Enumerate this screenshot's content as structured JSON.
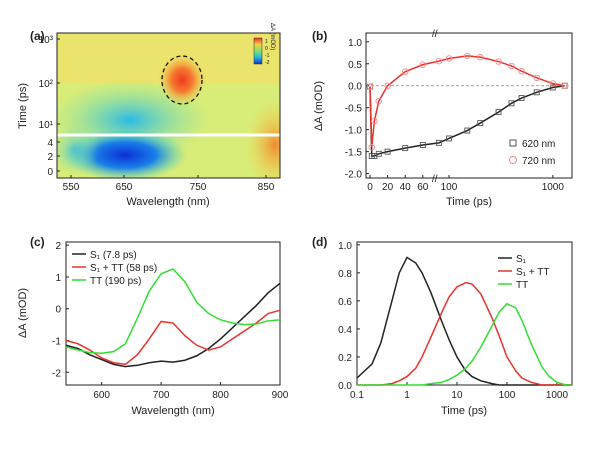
{
  "colors": {
    "black": "#222222",
    "red": "#e8322b",
    "green": "#33dd33",
    "red_marker": "#f28b8b",
    "black_marker": "#555555"
  },
  "chart_data": [
    {
      "panel": "(a)",
      "type": "heatmap",
      "xlabel": "Wavelength (nm)",
      "ylabel": "Time (ps)",
      "colorbar_label": "ΔA (mOD)",
      "colorbar_ticks": [
        "1",
        "0",
        "-1",
        "-2"
      ],
      "x_ticks": [
        "550",
        "650",
        "750",
        "850"
      ],
      "xlim": [
        530,
        900
      ],
      "y_ticks_log": [
        "10³",
        "10²",
        "10¹"
      ],
      "y_ticks_lin": [
        "4",
        "2",
        "0"
      ],
      "y_scale": "linear 0–5 ps, log 5–1000 ps",
      "features": [
        {
          "kind": "positive-peak",
          "wavelength": 715,
          "time_ps": 150,
          "outlined": "dashed ellipse"
        },
        {
          "kind": "negative-band",
          "wavelength_range": [
            600,
            680
          ],
          "time_range_ps": [
            0,
            20
          ]
        }
      ],
      "divider": "white line at break of time axis"
    },
    {
      "panel": "(b)",
      "type": "scatter",
      "xlabel": "Time (ps)",
      "ylabel": "ΔA (mOD)",
      "x_ticks": [
        "0",
        "20",
        "40",
        "60",
        "100",
        "1000"
      ],
      "ylim": [
        -2.1,
        1.2
      ],
      "y_ticks": [
        "1.0",
        "0.5",
        "0.0",
        "-0.5",
        "-1.0",
        "-1.5",
        "-2.0"
      ],
      "x_scale": "linear 0–75 ps, log 75–1400 ps",
      "series": [
        {
          "name": "620 nm",
          "marker": "square",
          "x": [
            0,
            2,
            5,
            10,
            20,
            40,
            60,
            80,
            100,
            150,
            200,
            300,
            400,
            500,
            700,
            1000,
            1300
          ],
          "y": [
            -0.02,
            -1.6,
            -1.6,
            -1.55,
            -1.5,
            -1.42,
            -1.35,
            -1.3,
            -1.2,
            -1.02,
            -0.85,
            -0.6,
            -0.4,
            -0.28,
            -0.15,
            -0.04,
            0.0
          ]
        },
        {
          "name": "720 nm",
          "marker": "circle",
          "x": [
            0,
            2,
            5,
            10,
            20,
            40,
            60,
            80,
            100,
            150,
            200,
            300,
            400,
            500,
            700,
            1000,
            1300
          ],
          "y": [
            -0.02,
            -1.4,
            -0.8,
            -0.35,
            0.0,
            0.32,
            0.48,
            0.56,
            0.62,
            0.68,
            0.65,
            0.55,
            0.45,
            0.33,
            0.18,
            0.05,
            0.0
          ]
        }
      ]
    },
    {
      "panel": "(c)",
      "type": "line",
      "xlabel": "Wavelength (nm)",
      "ylabel": "ΔA (mOD)",
      "xlim": [
        540,
        900
      ],
      "ylim": [
        -2.4,
        2.1
      ],
      "x_ticks": [
        "600",
        "700",
        "800",
        "900"
      ],
      "y_ticks": [
        "2",
        "1",
        "0",
        "-1",
        "-2"
      ],
      "x": [
        540,
        560,
        580,
        600,
        620,
        640,
        660,
        680,
        700,
        720,
        740,
        760,
        780,
        800,
        820,
        840,
        860,
        880,
        900
      ],
      "series": [
        {
          "name": "S₁ (7.8 ps)",
          "color": "black",
          "values": [
            -1.15,
            -1.25,
            -1.45,
            -1.6,
            -1.75,
            -1.82,
            -1.78,
            -1.7,
            -1.65,
            -1.68,
            -1.62,
            -1.48,
            -1.25,
            -0.95,
            -0.6,
            -0.25,
            0.1,
            0.5,
            0.8
          ]
        },
        {
          "name": "S₁ + TT (58 ps)",
          "color": "red",
          "values": [
            -1.0,
            -1.1,
            -1.3,
            -1.55,
            -1.7,
            -1.75,
            -1.45,
            -0.95,
            -0.4,
            -0.45,
            -0.85,
            -1.15,
            -1.3,
            -1.2,
            -0.95,
            -0.7,
            -0.45,
            -0.15,
            -0.05
          ]
        },
        {
          "name": "TT (190 ps)",
          "color": "green",
          "values": [
            -1.2,
            -1.3,
            -1.38,
            -1.4,
            -1.35,
            -1.1,
            -0.3,
            0.55,
            1.1,
            1.25,
            0.85,
            0.2,
            -0.15,
            -0.35,
            -0.45,
            -0.5,
            -0.48,
            -0.38,
            -0.35
          ]
        }
      ]
    },
    {
      "panel": "(d)",
      "type": "line",
      "xlabel": "Time (ps)",
      "ylabel": "",
      "x_scale": "log",
      "xlim": [
        0.1,
        2000
      ],
      "ylim": [
        0,
        1.02
      ],
      "x_ticks": [
        "0.1",
        "1",
        "10",
        "100",
        "1000"
      ],
      "y_ticks": [
        "1.0",
        "0.8",
        "0.6",
        "0.4",
        "0.2",
        "0.0"
      ],
      "x": [
        0.1,
        0.2,
        0.3,
        0.5,
        0.7,
        1,
        1.5,
        2,
        3,
        5,
        7,
        10,
        15,
        20,
        30,
        50,
        70,
        100,
        150,
        200,
        300,
        500,
        700,
        1000,
        1500,
        2000
      ],
      "series": [
        {
          "name": "S₁",
          "color": "black",
          "values": [
            0.05,
            0.15,
            0.3,
            0.6,
            0.8,
            0.91,
            0.87,
            0.8,
            0.66,
            0.45,
            0.32,
            0.2,
            0.1,
            0.06,
            0.03,
            0.01,
            0.0,
            0.0,
            0.0,
            0.0,
            0.0,
            0.0,
            0.0,
            0.0,
            0.0,
            0.0
          ]
        },
        {
          "name": "S₁ + TT",
          "color": "red",
          "values": [
            0.0,
            0.0,
            0.0,
            0.01,
            0.03,
            0.06,
            0.12,
            0.2,
            0.34,
            0.52,
            0.63,
            0.7,
            0.73,
            0.72,
            0.65,
            0.48,
            0.35,
            0.2,
            0.1,
            0.05,
            0.02,
            0.0,
            0.0,
            0.0,
            0.0,
            0.0
          ]
        },
        {
          "name": "TT",
          "color": "green",
          "values": [
            0.0,
            0.0,
            0.0,
            0.0,
            0.0,
            0.0,
            0.0,
            0.0,
            0.01,
            0.02,
            0.04,
            0.07,
            0.12,
            0.17,
            0.27,
            0.42,
            0.52,
            0.58,
            0.55,
            0.46,
            0.3,
            0.13,
            0.06,
            0.02,
            0.0,
            0.0
          ]
        }
      ]
    }
  ]
}
